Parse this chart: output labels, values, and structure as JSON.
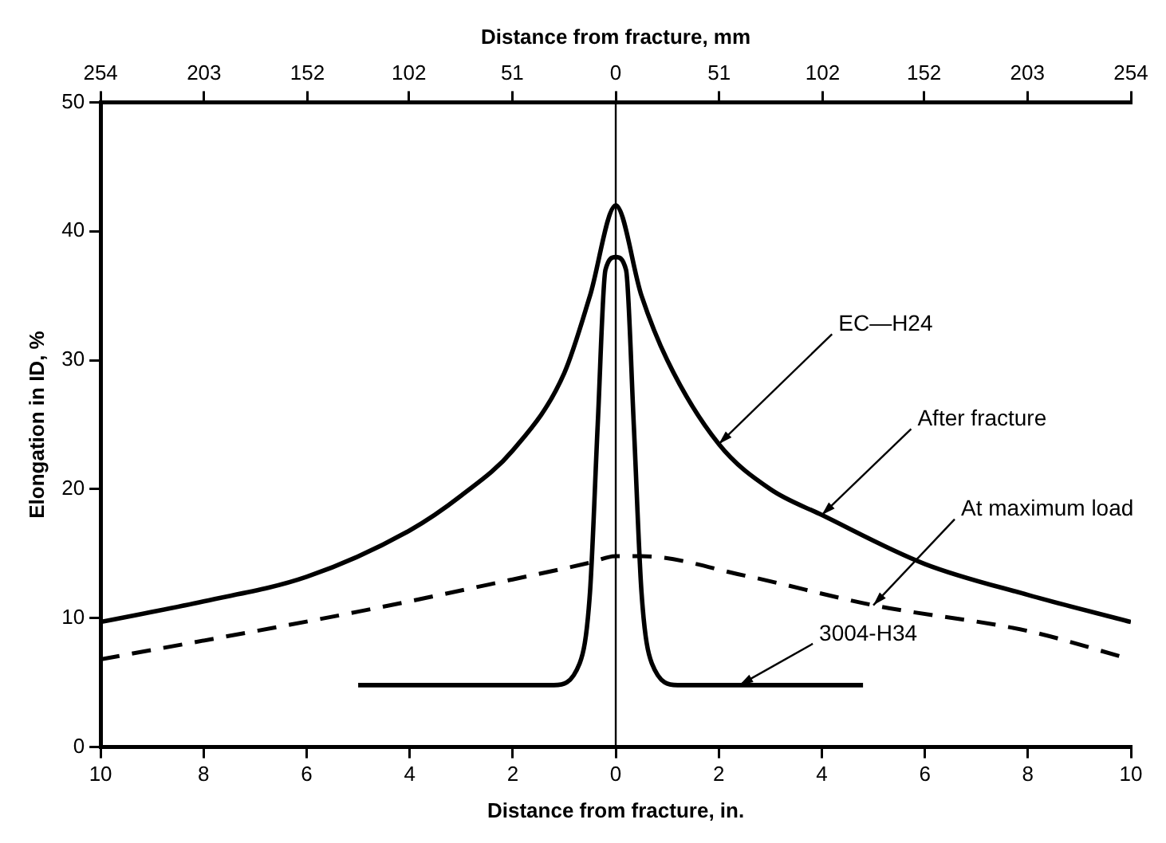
{
  "chart_data": {
    "type": "line",
    "xlabel": "Distance from fracture, in.",
    "x2label": "Distance from fracture, mm",
    "ylabel": "Elongation in ID, %",
    "xlim": [
      -10,
      10
    ],
    "xticks": [
      {
        "value": -10,
        "label": "10"
      },
      {
        "value": -8,
        "label": "8"
      },
      {
        "value": -6,
        "label": "6"
      },
      {
        "value": -4,
        "label": "4"
      },
      {
        "value": -2,
        "label": "2"
      },
      0,
      2,
      4,
      6,
      8,
      10
    ],
    "x2lim": [
      -254,
      254
    ],
    "x2ticks": [
      {
        "value": -254,
        "label": "254"
      },
      {
        "value": -203,
        "label": "203"
      },
      {
        "value": -152,
        "label": "152"
      },
      {
        "value": -102,
        "label": "102"
      },
      {
        "value": -51,
        "label": "51"
      },
      0,
      51,
      102,
      152,
      203,
      254
    ],
    "ylim": [
      0,
      50
    ],
    "yticks": [
      0,
      10,
      20,
      30,
      40,
      50
    ],
    "grid": false,
    "legend": false,
    "marker": "none",
    "series": [
      {
        "color": "#000000",
        "line_style": "solid",
        "x": [
          -10,
          -8,
          -6,
          -4,
          -3,
          -2,
          -1,
          -0.5,
          0,
          0.5,
          1,
          2,
          3,
          4,
          6,
          8,
          10
        ],
        "values": [
          9.7,
          11.3,
          13.2,
          16.8,
          19.5,
          23,
          29,
          35,
          42,
          35,
          30,
          23.5,
          20,
          18,
          14.2,
          11.8,
          9.7
        ]
      },
      {
        "color": "#000000",
        "line_style": "dashed",
        "x": [
          -10,
          -5,
          -2,
          -0.5,
          0,
          0.5,
          2.5,
          5,
          8,
          10
        ],
        "values": [
          6.8,
          10.5,
          13,
          14.3,
          14.8,
          14.8,
          13.3,
          11,
          9,
          6.8
        ]
      },
      {
        "color": "#000000",
        "line_style": "solid",
        "x": [
          -5,
          -1.2,
          -0.7,
          -0.5,
          -0.35,
          -0.2,
          0,
          0.2,
          0.35,
          0.5,
          0.7,
          1.2,
          4.8
        ],
        "values": [
          4.8,
          4.8,
          6.5,
          12,
          25,
          37,
          38,
          37,
          25,
          12,
          6.5,
          4.8,
          4.8
        ]
      }
    ],
    "ref_lines": [
      {
        "axis": "x",
        "value": 0,
        "color": "#000000"
      }
    ],
    "annotations": [
      {
        "text": "EC—H24",
        "x": 2,
        "y": 23.5
      },
      {
        "text": "After fracture",
        "x": 4,
        "y": 18
      },
      {
        "text": "At maximum load",
        "x": 5,
        "y": 11
      },
      {
        "text": "3004-H34",
        "x": 2.4,
        "y": 4.8
      }
    ]
  }
}
